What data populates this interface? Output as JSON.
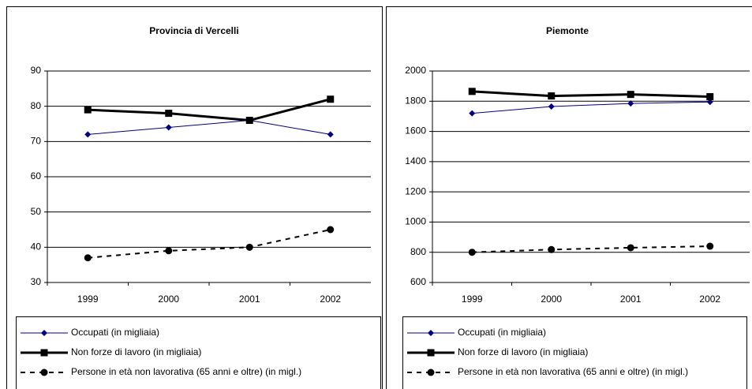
{
  "chart_data": [
    {
      "type": "line",
      "title": "Provincia di Vercelli",
      "categories": [
        "1999",
        "2000",
        "2001",
        "2002"
      ],
      "ylim": [
        30,
        90
      ],
      "yticks": [
        30,
        40,
        50,
        60,
        70,
        80,
        90
      ],
      "grid": true,
      "series": [
        {
          "name": "Occupati (in migliaia)",
          "color": "#000080",
          "line_width": 1,
          "marker": "diamond",
          "dashed": false,
          "values": [
            72,
            74,
            76,
            72
          ]
        },
        {
          "name": "Non forze di lavoro (in migliaia)",
          "color": "#000000",
          "line_width": 3,
          "marker": "square",
          "dashed": false,
          "values": [
            79,
            78,
            76,
            82
          ]
        },
        {
          "name": "Persone in età non lavorativa (65 anni e oltre) (in migl.)",
          "color": "#000000",
          "line_width": 2,
          "marker": "circle",
          "dashed": true,
          "values": [
            37,
            39,
            40,
            45
          ]
        }
      ]
    },
    {
      "type": "line",
      "title": "Piemonte",
      "categories": [
        "1999",
        "2000",
        "2001",
        "2002"
      ],
      "ylim": [
        600,
        2000
      ],
      "yticks": [
        600,
        800,
        1000,
        1200,
        1400,
        1600,
        1800,
        2000
      ],
      "grid": true,
      "series": [
        {
          "name": "Occupati (in migliaia)",
          "color": "#000080",
          "line_width": 1,
          "marker": "diamond",
          "dashed": false,
          "values": [
            1720,
            1765,
            1785,
            1795
          ]
        },
        {
          "name": "Non forze di lavoro (in migliaia)",
          "color": "#000000",
          "line_width": 3,
          "marker": "square",
          "dashed": false,
          "values": [
            1865,
            1835,
            1845,
            1830
          ]
        },
        {
          "name": "Persone in età non lavorativa (65 anni e oltre) (in migl.)",
          "color": "#000000",
          "line_width": 2,
          "marker": "circle",
          "dashed": true,
          "values": [
            800,
            818,
            830,
            840
          ]
        }
      ]
    }
  ]
}
